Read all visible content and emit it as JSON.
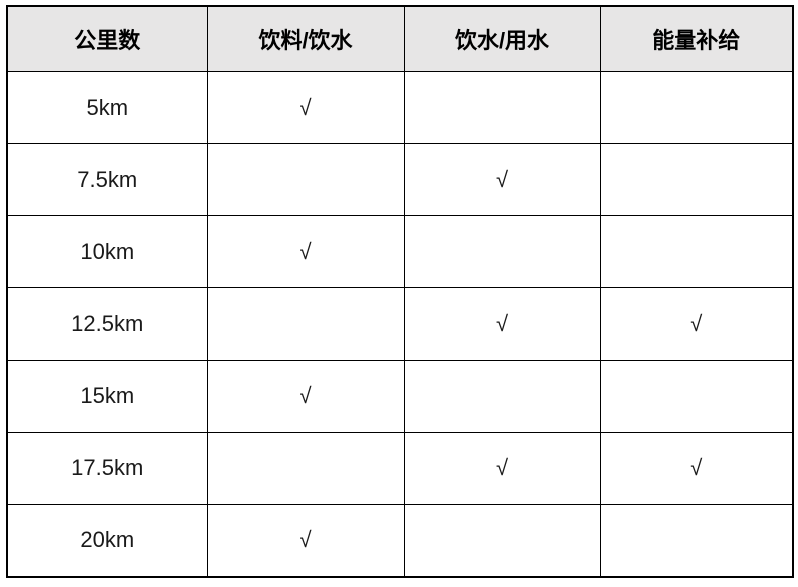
{
  "table": {
    "headers": [
      "公里数",
      "饮料/饮水",
      "饮水/用水",
      "能量补给"
    ],
    "check_mark": "√",
    "rows": [
      {
        "km": "5km",
        "cells": [
          "√",
          "",
          ""
        ]
      },
      {
        "km": "7.5km",
        "cells": [
          "",
          "√",
          ""
        ]
      },
      {
        "km": "10km",
        "cells": [
          "√",
          "",
          ""
        ]
      },
      {
        "km": "12.5km",
        "cells": [
          "",
          "√",
          "√"
        ]
      },
      {
        "km": "15km",
        "cells": [
          "√",
          "",
          ""
        ]
      },
      {
        "km": "17.5km",
        "cells": [
          "",
          "√",
          "√"
        ]
      },
      {
        "km": "20km",
        "cells": [
          "√",
          "",
          ""
        ]
      }
    ],
    "colors": {
      "header_bg": "#e7e6e6",
      "border": "#000000",
      "text": "#1a1a1a"
    }
  }
}
